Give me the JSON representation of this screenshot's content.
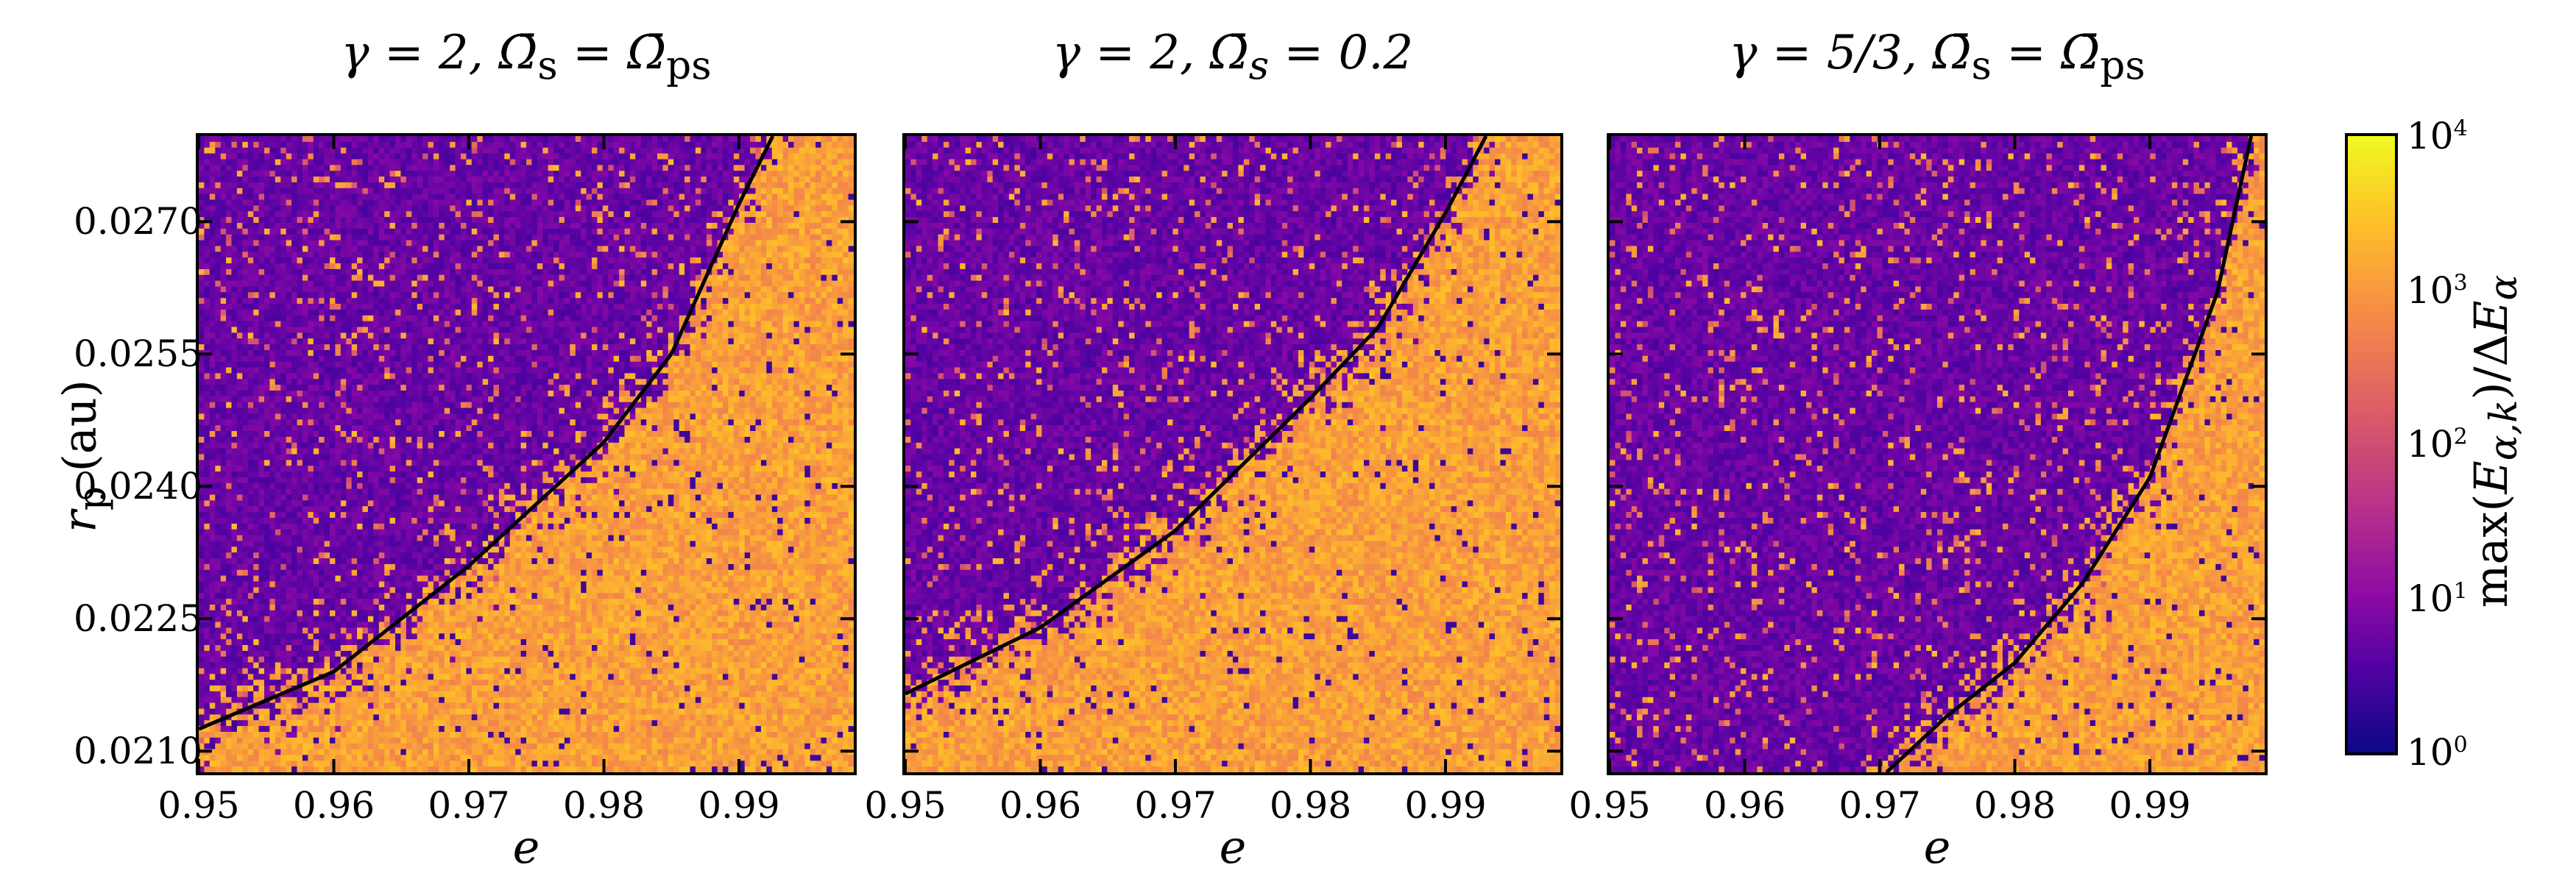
{
  "chart_data": [
    {
      "type": "heatmap",
      "title": "γ = 2,  Ω̄s = Ω̄ps",
      "xlabel": "e",
      "ylabel": "r_p (au)",
      "xlim": [
        0.95,
        0.9985
      ],
      "ylim": [
        0.02076,
        0.02797
      ],
      "xticks": [
        0.95,
        0.96,
        0.97,
        0.98,
        0.99
      ],
      "yticks": [
        0.021,
        0.0225,
        0.024,
        0.0255,
        0.027
      ],
      "colormap": "plasma",
      "color_scale": "log",
      "color_range": [
        1,
        10000
      ],
      "regions": {
        "upper_left": "low values (~10^0-10^1, purple)",
        "lower_right": "high values (~10^3, orange)"
      },
      "boundary_curve": {
        "e": [
          0.95,
          0.96,
          0.97,
          0.98,
          0.985,
          0.99,
          0.9925
        ],
        "r_p": [
          0.02125,
          0.0219,
          0.0231,
          0.0245,
          0.0255,
          0.0272,
          0.02797
        ]
      }
    },
    {
      "type": "heatmap",
      "title": "γ = 2,  Ω̄s = 0.2",
      "xlabel": "e",
      "xlim": [
        0.95,
        0.9985
      ],
      "ylim": [
        0.02076,
        0.02797
      ],
      "xticks": [
        0.95,
        0.96,
        0.97,
        0.98,
        0.99
      ],
      "colormap": "plasma",
      "color_scale": "log",
      "color_range": [
        1,
        10000
      ],
      "boundary_curve": {
        "e": [
          0.95,
          0.96,
          0.97,
          0.98,
          0.985,
          0.99,
          0.993
        ],
        "r_p": [
          0.02165,
          0.0224,
          0.0235,
          0.025,
          0.0258,
          0.0271,
          0.02797
        ]
      }
    },
    {
      "type": "heatmap",
      "title": "γ = 5/3,  Ω̄s = Ω̄ps",
      "xlabel": "e",
      "xlim": [
        0.95,
        0.9985
      ],
      "ylim": [
        0.02076,
        0.02797
      ],
      "xticks": [
        0.95,
        0.96,
        0.97,
        0.98,
        0.99
      ],
      "colormap": "plasma",
      "color_scale": "log",
      "color_range": [
        1,
        10000
      ],
      "boundary_curve": {
        "e": [
          0.9705,
          0.975,
          0.98,
          0.985,
          0.99,
          0.995,
          0.9975
        ],
        "r_p": [
          0.02076,
          0.0214,
          0.022,
          0.0229,
          0.0241,
          0.0262,
          0.02797
        ]
      }
    }
  ],
  "panels": [
    {
      "title_gamma": "γ = 2,",
      "title_omega": "Ω̄",
      "title_sub": "s",
      "title_eq": " = Ω̄",
      "title_rhs_sub": "ps",
      "title_rhs": ""
    },
    {
      "title_gamma": "γ = 2,",
      "title_omega": "Ω̄",
      "title_sub": "s",
      "title_eq": " = 0.2",
      "title_rhs_sub": "",
      "title_rhs": ""
    },
    {
      "title_gamma": "γ = 5/3,",
      "title_omega": "Ω̄",
      "title_sub": "s",
      "title_eq": " = Ω̄",
      "title_rhs_sub": "ps",
      "title_rhs": ""
    }
  ],
  "axes": {
    "xlabel": "e",
    "ylabel_main": "r",
    "ylabel_sub": "p",
    "ylabel_unit": " (au)",
    "xtick_labels": [
      "0.95",
      "0.96",
      "0.97",
      "0.98",
      "0.99"
    ],
    "ytick_labels": [
      "0.0270",
      "0.0255",
      "0.0240",
      "0.0225",
      "0.0210"
    ]
  },
  "colorbar": {
    "ticks": [
      {
        "base": "10",
        "exp": "4"
      },
      {
        "base": "10",
        "exp": "3"
      },
      {
        "base": "10",
        "exp": "2"
      },
      {
        "base": "10",
        "exp": "1"
      },
      {
        "base": "10",
        "exp": "0"
      }
    ],
    "label": "max(E_{α,k}) / ΔE_α",
    "label_display": "max(Eα,k)/ΔEα"
  },
  "colors": {
    "low": "#0d0887",
    "mid": "#b83289",
    "high": "#f89540",
    "max": "#f0f921",
    "curve": "#000000"
  }
}
